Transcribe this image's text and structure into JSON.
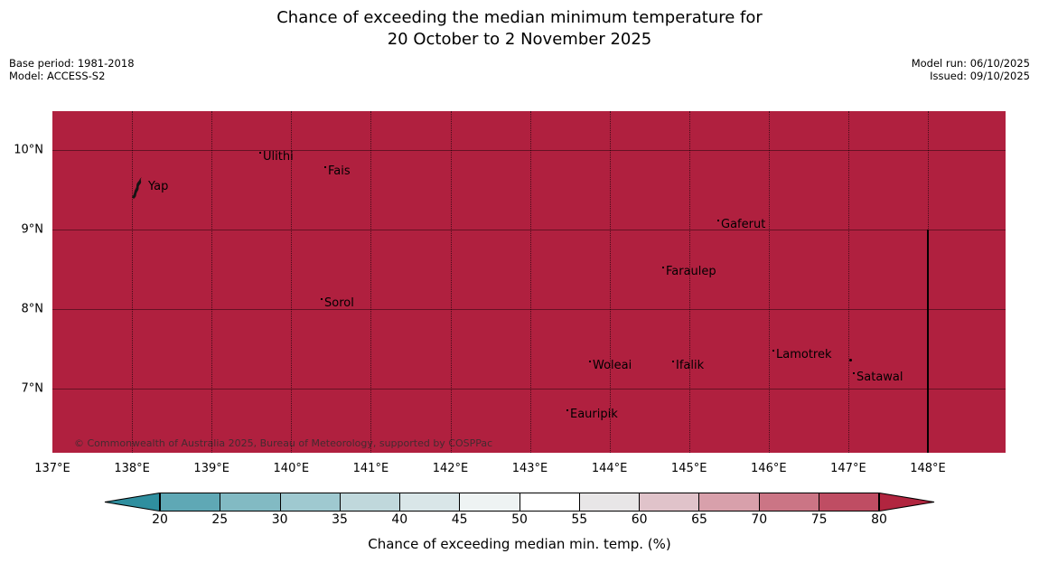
{
  "title": {
    "line1": "Chance of exceeding the median minimum temperature for",
    "line2": "20 October to 2 November 2025"
  },
  "meta_left": {
    "base_period": "Base period: 1981-2018",
    "model": "Model: ACCESS-S2"
  },
  "meta_right": {
    "model_run": "Model run: 06/10/2025",
    "issued": "Issued: 09/10/2025"
  },
  "map": {
    "fill_color": "#b0203f",
    "copyright": "© Commonwealth of Australia 2025, Bureau of Meteorology, supported by COSPPac",
    "islands": [
      {
        "name": "Yap"
      },
      {
        "name": "Ulithi"
      },
      {
        "name": "Fais"
      },
      {
        "name": "Gaferut"
      },
      {
        "name": "Faraulep"
      },
      {
        "name": "Sorol"
      },
      {
        "name": "Woleai"
      },
      {
        "name": "Ifalik"
      },
      {
        "name": "Lamotrek"
      },
      {
        "name": "Satawal"
      },
      {
        "name": "Eauripik"
      }
    ]
  },
  "axes": {
    "x_ticks": [
      "137°E",
      "138°E",
      "139°E",
      "140°E",
      "141°E",
      "142°E",
      "143°E",
      "144°E",
      "145°E",
      "146°E",
      "147°E",
      "148°E"
    ],
    "y_ticks": [
      "10°N",
      "9°N",
      "8°N",
      "7°N"
    ]
  },
  "colorbar": {
    "label": "Chance of exceeding median min. temp. (%)",
    "ticks": [
      "20",
      "25",
      "30",
      "35",
      "40",
      "45",
      "50",
      "55",
      "60",
      "65",
      "70",
      "75",
      "80"
    ],
    "under_color": "#2f8f9f",
    "over_color": "#b1253f",
    "segment_colors": [
      "#5fa8b5",
      "#82bac3",
      "#9fc9d0",
      "#c0d8dc",
      "#d9e6e8",
      "#eef3f3",
      "#ffffff",
      "#e8e6e7",
      "#e0c3ca",
      "#d8a0ab",
      "#cb7585",
      "#bf4d63"
    ]
  },
  "chart_data": {
    "type": "heatmap",
    "title": "Chance of exceeding the median minimum temperature for 20 October to 2 November 2025",
    "base_period": "1981-2018",
    "model": "ACCESS-S2",
    "model_run": "06/10/2025",
    "issued": "09/10/2025",
    "colorbar_label": "Chance of exceeding median min. temp. (%)",
    "colorbar_ticks": [
      20,
      25,
      30,
      35,
      40,
      45,
      50,
      55,
      60,
      65,
      70,
      75,
      80
    ],
    "colorbar_units": "percent",
    "lon_range_deg_east": [
      137,
      149
    ],
    "lat_range_deg_north": [
      6.2,
      10.5
    ],
    "x_tick_values_deg_east": [
      137,
      138,
      139,
      140,
      141,
      142,
      143,
      144,
      145,
      146,
      147,
      148
    ],
    "y_tick_values_deg_north": [
      10,
      9,
      8,
      7
    ],
    "grid": true,
    "field_summary": "Entire mapped region is a uniform deep red, i.e. chance exceeds the top colorbar level (>80%) everywhere shown",
    "boundary_line": {
      "lon_deg_east": 148,
      "lat_extent_deg_north": [
        9,
        6.2
      ]
    },
    "islands": [
      {
        "name": "Yap",
        "lon": 138.1,
        "lat": 9.5
      },
      {
        "name": "Ulithi",
        "lon": 139.8,
        "lat": 10.0
      },
      {
        "name": "Fais",
        "lon": 140.5,
        "lat": 9.8
      },
      {
        "name": "Gaferut",
        "lon": 145.3,
        "lat": 9.2
      },
      {
        "name": "Faraulep",
        "lon": 144.6,
        "lat": 8.5
      },
      {
        "name": "Sorol",
        "lon": 140.4,
        "lat": 8.2
      },
      {
        "name": "Woleai",
        "lon": 143.8,
        "lat": 7.4
      },
      {
        "name": "Ifalik",
        "lon": 144.8,
        "lat": 7.4
      },
      {
        "name": "Lamotrek",
        "lon": 146.1,
        "lat": 7.5
      },
      {
        "name": "Satawal",
        "lon": 147.1,
        "lat": 7.3
      },
      {
        "name": "Eauripik",
        "lon": 143.5,
        "lat": 6.8
      }
    ]
  }
}
